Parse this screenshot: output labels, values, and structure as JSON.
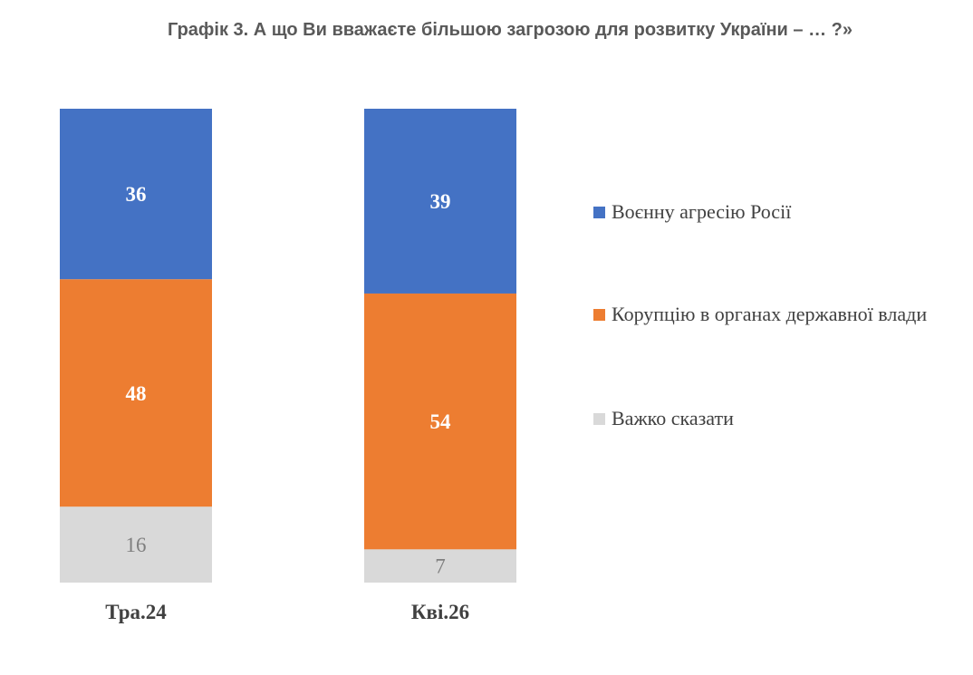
{
  "title": "Графік 3. А що Ви вважаєте більшою загрозою для розвитку України – … ?»",
  "colors": {
    "military": "#4472C4",
    "corruption": "#ED7D31",
    "hard_to_say": "#D9D9D9",
    "label_light": "#FFFFFF",
    "label_dark": "#7F7F7F",
    "axis_text": "#404040"
  },
  "chart_data": {
    "type": "bar",
    "stacked": true,
    "categories": [
      "Тра.24",
      "Кві.26"
    ],
    "series": [
      {
        "name": "Воєнну агресію Росії",
        "values": [
          36,
          39
        ],
        "color": "#4472C4"
      },
      {
        "name": "Корупцію в органах державної влади",
        "values": [
          48,
          54
        ],
        "color": "#ED7D31"
      },
      {
        "name": "Важко сказати",
        "values": [
          16,
          7
        ],
        "color": "#D9D9D9"
      }
    ],
    "ylim": [
      0,
      100
    ],
    "grid": false,
    "legend_position": "right"
  }
}
